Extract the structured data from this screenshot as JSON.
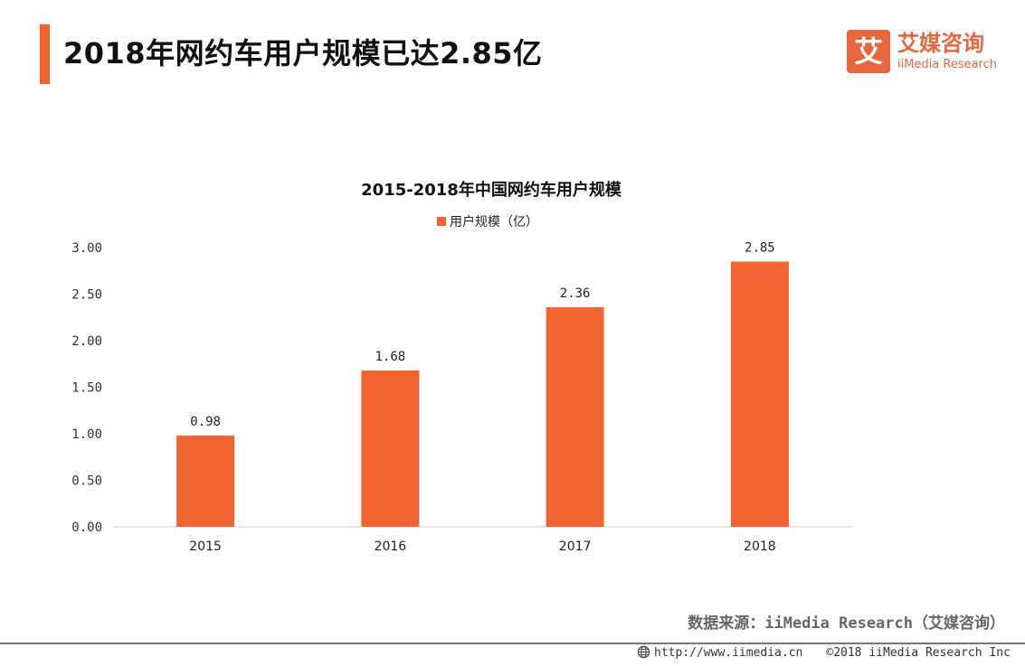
{
  "header": {
    "title": "2018年网约车用户规模已达2.85亿",
    "accent_color": "#f26332"
  },
  "logo": {
    "mark": "艾",
    "cn": "艾媒咨询",
    "en": "iiMedia Research"
  },
  "chart_data": {
    "type": "bar",
    "title": "2015-2018年中国网约车用户规模",
    "legend": [
      "用户规模（亿）"
    ],
    "categories": [
      "2015",
      "2016",
      "2017",
      "2018"
    ],
    "series": [
      {
        "name": "用户规模（亿）",
        "values": [
          0.98,
          1.68,
          2.36,
          2.85
        ],
        "color": "#f26332"
      }
    ],
    "data_labels": [
      "0.98",
      "1.68",
      "2.36",
      "2.85"
    ],
    "yticks": [
      "0.00",
      "0.50",
      "1.00",
      "1.50",
      "2.00",
      "2.50",
      "3.00"
    ],
    "ylim": [
      0,
      3
    ],
    "xlabel": "",
    "ylabel": "",
    "grid": false
  },
  "source": "数据来源：iiMedia Research（艾媒咨询）",
  "footer": {
    "url": "http://www.iimedia.cn",
    "copyright": "©2018  iiMedia Research  Inc"
  }
}
